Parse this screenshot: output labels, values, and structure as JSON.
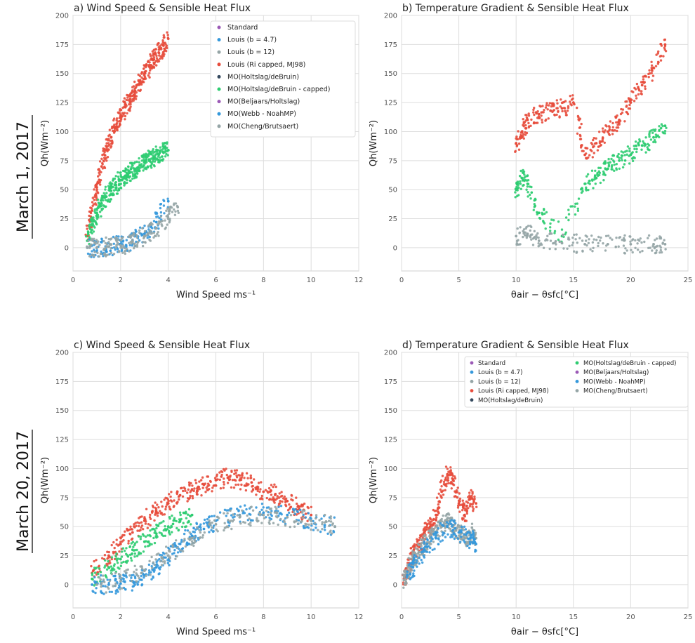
{
  "row_labels": [
    "March 1, 2017",
    "March 20, 2017"
  ],
  "colors": {
    "Standard": "#9b59b6",
    "Louis (b = 4.7)": "#3498db",
    "Louis (b = 12)": "#95a5a6",
    "Louis (Ri capped, MJ98)": "#e74c3c",
    "MO(Holtslag/deBruin)": "#34495e",
    "MO(Holtslag/deBruin - capped)": "#2ecc71",
    "MO(Beljaars/Holtslag)": "#9b59b6",
    "MO(Webb - NoahMP)": "#3498db",
    "MO(Cheng/Brutsaert)": "#95a5a6"
  },
  "legend_entries": [
    "Standard",
    "Louis (b = 4.7)",
    "Louis (b = 12)",
    "Louis (Ri capped, MJ98)",
    "MO(Holtslag/deBruin)",
    "MO(Holtslag/deBruin - capped)",
    "MO(Beljaars/Holtslag)",
    "MO(Webb - NoahMP)",
    "MO(Cheng/Brutsaert)"
  ],
  "chart_data": [
    {
      "type": "scatter",
      "title": "a) Wind Speed & Sensible Heat Flux",
      "xlabel": "Wind Speed ms⁻¹",
      "ylabel": "Qh(Wm⁻²)",
      "xlim": [
        0,
        12
      ],
      "ylim": [
        -20,
        200
      ],
      "xticks": [
        0,
        2,
        4,
        6,
        8,
        10,
        12
      ],
      "yticks": [
        0,
        25,
        50,
        75,
        100,
        125,
        150,
        175,
        200
      ],
      "grid": true,
      "legend_placement": "top-right",
      "series": [
        {
          "name": "Louis (Ri capped, MJ98)",
          "x": [
            0.6,
            0.8,
            1.0,
            1.2,
            1.4,
            1.6,
            1.8,
            2.0,
            2.2,
            2.4,
            2.6,
            2.8,
            3.0,
            3.2,
            3.4,
            3.6,
            3.8,
            4.0
          ],
          "y": [
            10,
            32,
            52,
            70,
            84,
            95,
            104,
            113,
            121,
            128,
            135,
            142,
            150,
            156,
            162,
            168,
            174,
            180
          ]
        },
        {
          "name": "MO(Holtslag/deBruin - capped)",
          "x": [
            0.6,
            0.8,
            1.0,
            1.2,
            1.4,
            1.6,
            1.8,
            2.0,
            2.2,
            2.4,
            2.6,
            2.8,
            3.0,
            3.2,
            3.4,
            3.6,
            3.8,
            4.0
          ],
          "y": [
            6,
            20,
            30,
            38,
            44,
            49,
            54,
            58,
            62,
            65,
            68,
            71,
            74,
            76,
            78,
            80,
            82,
            84
          ]
        },
        {
          "name": "Louis (b = 4.7)",
          "x": [
            0.6,
            1.0,
            1.5,
            2.0,
            2.5,
            3.0,
            3.5,
            4.0
          ],
          "y": [
            0,
            0,
            1,
            3,
            6,
            12,
            22,
            40
          ]
        },
        {
          "name": "MO(Cheng/Brutsaert)",
          "x": [
            0.6,
            1.0,
            1.5,
            2.0,
            2.5,
            3.0,
            3.5,
            4.0,
            4.4
          ],
          "y": [
            0,
            0,
            1,
            2,
            5,
            10,
            17,
            25,
            35
          ]
        }
      ]
    },
    {
      "type": "scatter",
      "title": "b) Temperature Gradient & Sensible Heat Flux",
      "xlabel": "θair − θsfc[°C]",
      "ylabel": "Qh(Wm⁻²)",
      "xlim": [
        0,
        25
      ],
      "ylim": [
        -20,
        200
      ],
      "xticks": [
        0,
        5,
        10,
        15,
        20,
        25
      ],
      "yticks": [
        0,
        25,
        50,
        75,
        100,
        125,
        150,
        175,
        200
      ],
      "grid": true,
      "series": [
        {
          "name": "Louis (Ri capped, MJ98)",
          "x": [
            10,
            10.5,
            11,
            12,
            13,
            14,
            15,
            16,
            17,
            18,
            19,
            20,
            21,
            22,
            23
          ],
          "y": [
            90,
            100,
            110,
            115,
            118,
            120,
            125,
            80,
            90,
            100,
            110,
            125,
            140,
            155,
            175
          ]
        },
        {
          "name": "MO(Holtslag/deBruin - capped)",
          "x": [
            10,
            10.5,
            11,
            12,
            14,
            16,
            17,
            18,
            19,
            20,
            21,
            22,
            23
          ],
          "y": [
            50,
            60,
            55,
            30,
            10,
            55,
            60,
            68,
            75,
            80,
            88,
            95,
            105
          ]
        },
        {
          "name": "MO(Cheng/Brutsaert)",
          "x": [
            10,
            11,
            12,
            14,
            16,
            18,
            20,
            22,
            23
          ],
          "y": [
            10,
            12,
            6,
            4,
            3,
            3,
            3,
            3,
            3
          ]
        }
      ]
    },
    {
      "type": "scatter",
      "title": "c) Wind Speed & Sensible Heat Flux",
      "xlabel": "Wind Speed ms⁻¹",
      "ylabel": "Qh(Wm⁻²)",
      "xlim": [
        0,
        12
      ],
      "ylim": [
        -20,
        200
      ],
      "xticks": [
        0,
        2,
        4,
        6,
        8,
        10,
        12
      ],
      "yticks": [
        0,
        25,
        50,
        75,
        100,
        125,
        150,
        175,
        200
      ],
      "grid": true,
      "series": [
        {
          "name": "Louis (Ri capped, MJ98)",
          "x": [
            0.8,
            1.5,
            2.0,
            2.5,
            3.0,
            3.5,
            4.0,
            4.5,
            5.0,
            5.5,
            6.0,
            6.5,
            7.0,
            7.5,
            8.0,
            8.5,
            9.0,
            9.5,
            10.0
          ],
          "y": [
            10,
            25,
            35,
            45,
            55,
            63,
            70,
            77,
            82,
            86,
            90,
            92,
            90,
            88,
            80,
            78,
            72,
            65,
            60
          ]
        },
        {
          "name": "MO(Holtslag/deBruin - capped)",
          "x": [
            0.8,
            1.5,
            2.0,
            2.5,
            3.0,
            3.5,
            4.0,
            4.5,
            5.0
          ],
          "y": [
            5,
            15,
            22,
            30,
            37,
            44,
            50,
            55,
            60
          ]
        },
        {
          "name": "Louis (b = 4.7)",
          "x": [
            0.8,
            1.5,
            2.0,
            2.5,
            3.0,
            3.5,
            4.0,
            4.5,
            5.0,
            5.5,
            6.0,
            7.0,
            8.0,
            9.0,
            10.0,
            11.0
          ],
          "y": [
            0,
            0,
            1,
            3,
            8,
            15,
            25,
            35,
            42,
            48,
            55,
            60,
            62,
            60,
            55,
            50
          ]
        },
        {
          "name": "MO(Cheng/Brutsaert)",
          "x": [
            1.0,
            2.0,
            3.0,
            4.0,
            5.0,
            6.0,
            7.0,
            8.0,
            9.0,
            10.0,
            11.0
          ],
          "y": [
            0,
            3,
            12,
            25,
            40,
            52,
            58,
            60,
            58,
            55,
            50
          ]
        }
      ]
    },
    {
      "type": "scatter",
      "title": "d) Temperature Gradient & Sensible Heat Flux",
      "xlabel": "θair − θsfc[°C]",
      "ylabel": "Qh(Wm⁻²)",
      "xlim": [
        0,
        25
      ],
      "ylim": [
        -20,
        200
      ],
      "xticks": [
        0,
        5,
        10,
        15,
        20,
        25
      ],
      "yticks": [
        0,
        25,
        50,
        75,
        100,
        125,
        150,
        175,
        200
      ],
      "grid": true,
      "legend_placement": "top-right",
      "series": [
        {
          "name": "Louis (Ri capped, MJ98)",
          "x": [
            0.2,
            0.5,
            1.0,
            1.5,
            2.0,
            2.5,
            3.0,
            3.5,
            4.0,
            4.5,
            5.0,
            5.5,
            6.0,
            6.5
          ],
          "y": [
            5,
            12,
            25,
            35,
            45,
            50,
            60,
            80,
            95,
            90,
            70,
            60,
            75,
            70
          ]
        },
        {
          "name": "MO(Cheng/Brutsaert)",
          "x": [
            0.2,
            0.5,
            1.0,
            1.5,
            2.0,
            2.5,
            3.0,
            3.5,
            4.0,
            4.5,
            5.0,
            5.5,
            6.0,
            6.5
          ],
          "y": [
            4,
            10,
            20,
            28,
            35,
            40,
            45,
            50,
            55,
            50,
            45,
            40,
            45,
            40
          ]
        },
        {
          "name": "Louis (b = 4.7)",
          "x": [
            0.5,
            1.0,
            2.0,
            3.0,
            4.0,
            5.0,
            6.0,
            6.5
          ],
          "y": [
            8,
            15,
            30,
            40,
            50,
            45,
            40,
            35
          ]
        }
      ]
    }
  ]
}
